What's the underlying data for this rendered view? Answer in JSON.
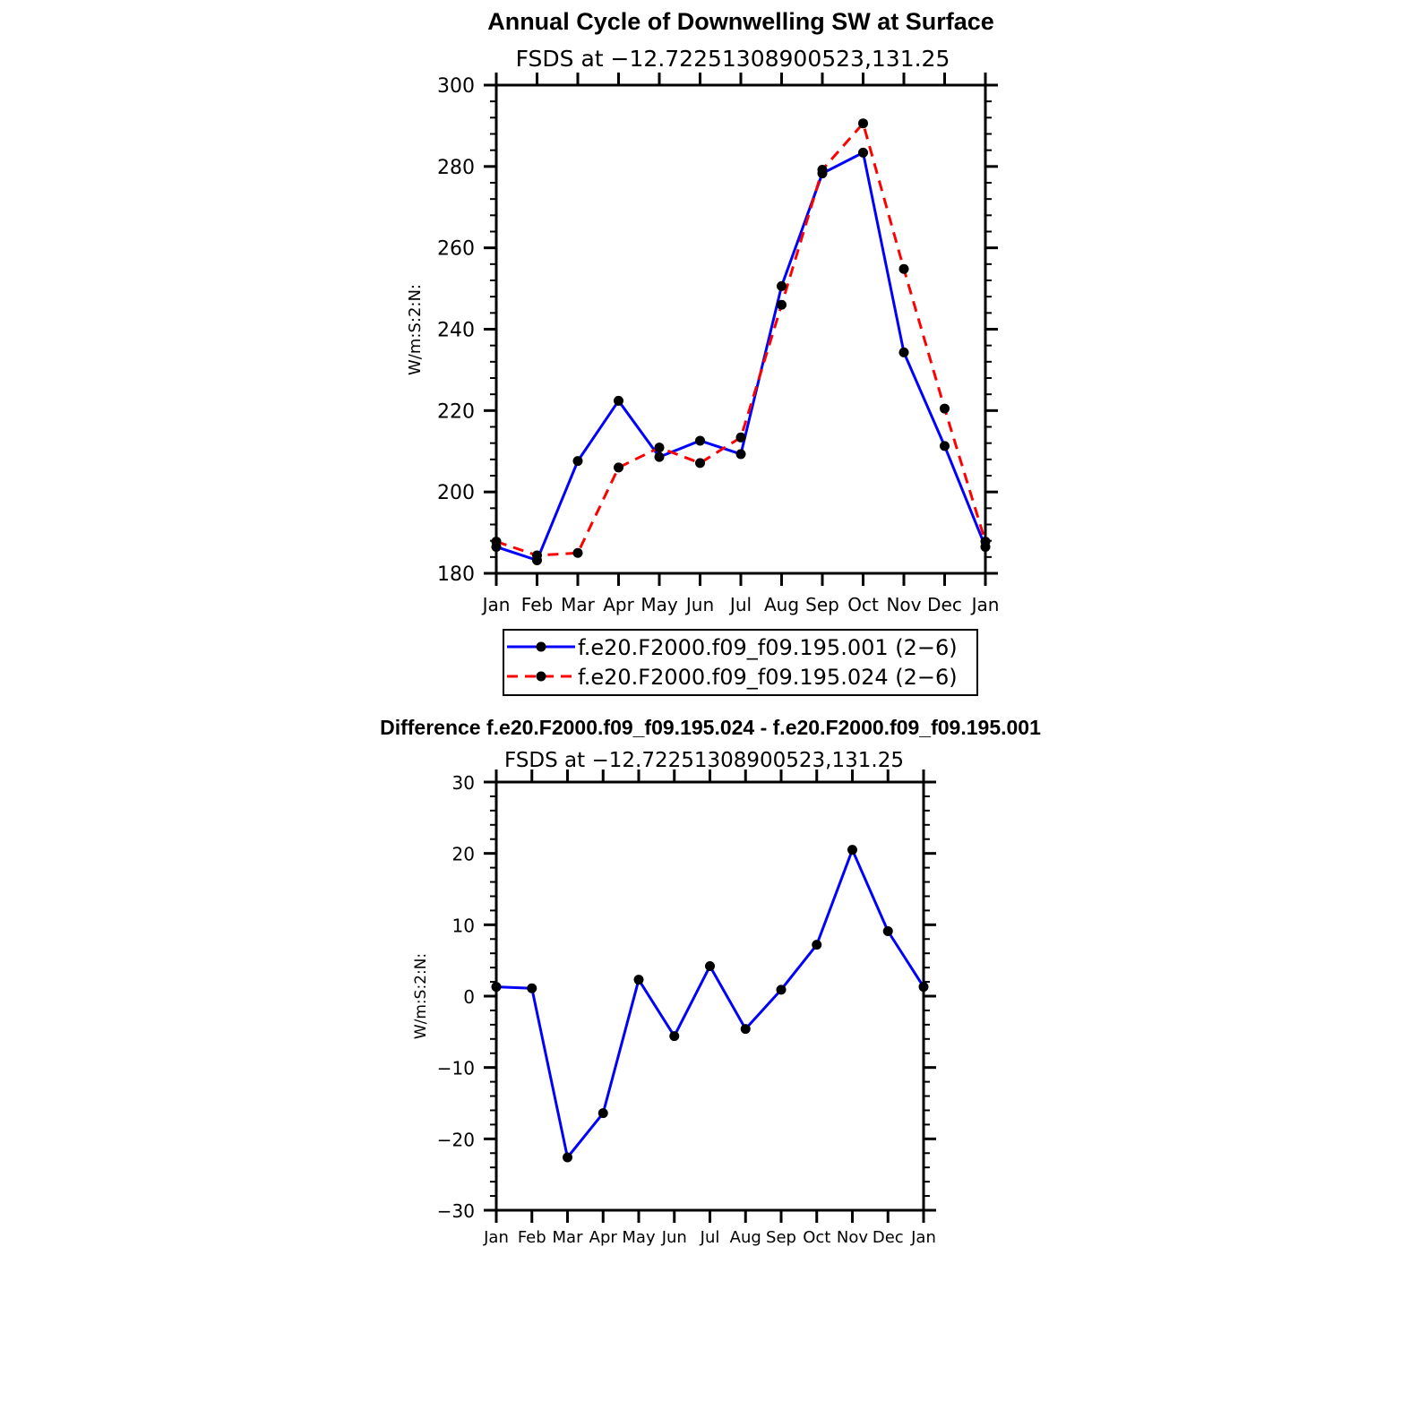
{
  "chart_data": [
    {
      "type": "line",
      "title": "Annual Cycle of Downwelling SW at Surface",
      "subtitle": "FSDS at −12.72251308900523,131.25",
      "xlabel": "",
      "ylabel": "W/m:S:2:N:",
      "categories": [
        "Jan",
        "Feb",
        "Mar",
        "Apr",
        "May",
        "Jun",
        "Jul",
        "Aug",
        "Sep",
        "Oct",
        "Nov",
        "Dec",
        "Jan"
      ],
      "ylim": [
        180,
        300
      ],
      "yticks": [
        "180",
        "200",
        "220",
        "240",
        "260",
        "280",
        "300"
      ],
      "series": [
        {
          "name": "f.e20.F2000.f09_f09.195.001 (2−6)",
          "color": "#0000ff",
          "dash": "solid",
          "values": [
            186.5,
            183.2,
            207.6,
            222.4,
            208.6,
            212.6,
            209.3,
            250.6,
            278.3,
            283.4,
            234.3,
            211.3,
            186.5
          ]
        },
        {
          "name": "f.e20.F2000.f09_f09.195.024 (2−6)",
          "color": "#ff0000",
          "dash": "dashed",
          "values": [
            187.8,
            184.4,
            185.0,
            206.0,
            210.9,
            207.1,
            213.4,
            246.0,
            279.2,
            290.6,
            254.8,
            220.5,
            187.8
          ]
        }
      ],
      "legend": "below"
    },
    {
      "type": "line",
      "title": "Difference f.e20.F2000.f09_f09.195.024 - f.e20.F2000.f09_f09.195.001",
      "subtitle": "FSDS at −12.72251308900523,131.25",
      "xlabel": "",
      "ylabel": "W/m:S:2:N:",
      "categories": [
        "Jan",
        "Feb",
        "Mar",
        "Apr",
        "May",
        "Jun",
        "Jul",
        "Aug",
        "Sep",
        "Oct",
        "Nov",
        "Dec",
        "Jan"
      ],
      "ylim": [
        -30,
        30
      ],
      "yticks": [
        "−30",
        "−20",
        "−10",
        "0",
        "10",
        "20",
        "30"
      ],
      "series": [
        {
          "name": "difference",
          "color": "#0000ff",
          "dash": "solid",
          "values": [
            1.3,
            1.1,
            -22.6,
            -16.4,
            2.3,
            -5.6,
            4.2,
            -4.6,
            0.9,
            7.2,
            20.5,
            9.1,
            1.3
          ]
        }
      ]
    }
  ]
}
